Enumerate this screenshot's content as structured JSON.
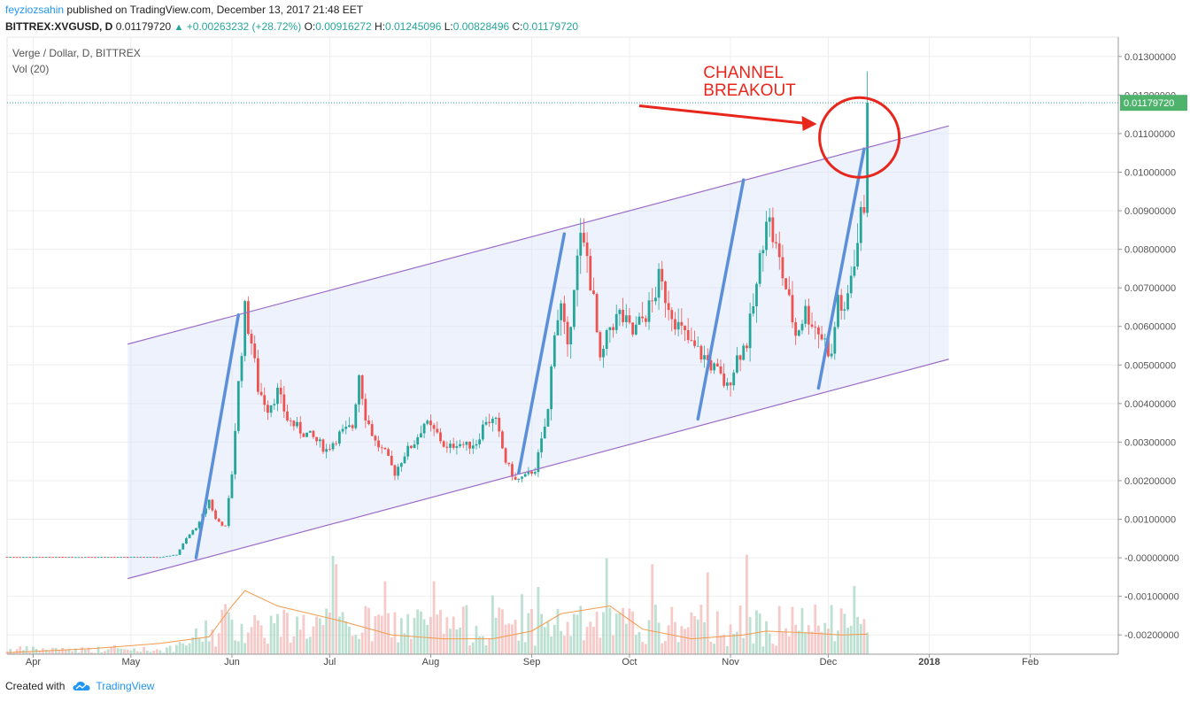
{
  "header": {
    "user": "feyziozsahin",
    "published_text": "published on TradingView.com, December 13, 2017 21:48 EET",
    "symbol_line": "BITTREX:XVGUSD, D",
    "last": "0.01179720",
    "change": "+0.00263232 (+28.72%)",
    "o_label": "O:",
    "o": "0.00916272",
    "h_label": "H:",
    "h": "0.01245096",
    "l_label": "L:",
    "l": "0.00828496",
    "c_label": "C:",
    "c": "0.01179720"
  },
  "legend": {
    "title": "Verge / Dollar, D, BITTREX",
    "vol": "Vol (20)"
  },
  "footer": {
    "created_with": "Created with",
    "brand": "TradingView"
  },
  "colors": {
    "up": "#26a69a",
    "down": "#ef5350",
    "channel": "#9c6cc9",
    "trend": "#5b8fd9",
    "annotation": "#e8261c",
    "volume_ma": "#f39a4b",
    "price_badge": "#4fb36d"
  },
  "chart_data": {
    "type": "candlestick",
    "title": "Verge / Dollar, D, BITTREX",
    "annotation": "CHANNEL\nBREAKOUT",
    "y_axis": {
      "range": [
        -0.0025,
        0.0135
      ],
      "ticks": [
        "0.01300000",
        "0.01200000",
        "0.01100000",
        "0.01000000",
        "0.00900000",
        "0.00800000",
        "0.00700000",
        "0.00600000",
        "0.00500000",
        "0.00400000",
        "0.00300000",
        "0.00200000",
        "0.00100000",
        "-0.00000000",
        "-0.00100000",
        "-0.00200000"
      ],
      "tick_values": [
        0.013,
        0.012,
        0.011,
        0.01,
        0.009,
        0.008,
        0.007,
        0.006,
        0.005,
        0.004,
        0.003,
        0.002,
        0.001,
        0.0,
        -0.001,
        -0.002
      ]
    },
    "x_axis": {
      "range": [
        "2017-03-24",
        "2018-02-28"
      ],
      "labels": [
        "Apr",
        "May",
        "Jun",
        "Jul",
        "Aug",
        "Sep",
        "Oct",
        "Nov",
        "Dec",
        "2018",
        "Feb"
      ],
      "label_dates": [
        "2017-04-01",
        "2017-05-01",
        "2017-06-01",
        "2017-07-01",
        "2017-08-01",
        "2017-09-01",
        "2017-10-01",
        "2017-11-01",
        "2017-12-01",
        "2018-01-01",
        "2018-02-01"
      ]
    },
    "last_price_label": "0.01179720",
    "last_price": 0.0117972,
    "price_path": [
      [
        "2017-03-24",
        2e-05
      ],
      [
        "2017-05-10",
        2e-05
      ],
      [
        "2017-05-15",
        8e-05
      ],
      [
        "2017-05-18",
        0.0005
      ],
      [
        "2017-05-22",
        0.0009
      ],
      [
        "2017-05-25",
        0.0015
      ],
      [
        "2017-05-27",
        0.001
      ],
      [
        "2017-05-30",
        0.0008
      ],
      [
        "2017-06-01",
        0.0022
      ],
      [
        "2017-06-03",
        0.0045
      ],
      [
        "2017-06-05",
        0.0064
      ],
      [
        "2017-06-07",
        0.0056
      ],
      [
        "2017-06-09",
        0.0044
      ],
      [
        "2017-06-12",
        0.0039
      ],
      [
        "2017-06-15",
        0.0043
      ],
      [
        "2017-06-18",
        0.0036
      ],
      [
        "2017-06-22",
        0.0033
      ],
      [
        "2017-06-26",
        0.0031
      ],
      [
        "2017-06-30",
        0.0028
      ],
      [
        "2017-07-04",
        0.0032
      ],
      [
        "2017-07-08",
        0.0034
      ],
      [
        "2017-07-10",
        0.0048
      ],
      [
        "2017-07-12",
        0.0037
      ],
      [
        "2017-07-15",
        0.003
      ],
      [
        "2017-07-18",
        0.0027
      ],
      [
        "2017-07-21",
        0.0022
      ],
      [
        "2017-07-24",
        0.0027
      ],
      [
        "2017-07-27",
        0.003
      ],
      [
        "2017-07-30",
        0.0035
      ],
      [
        "2017-08-03",
        0.0032
      ],
      [
        "2017-08-06",
        0.0028
      ],
      [
        "2017-08-09",
        0.003
      ],
      [
        "2017-08-12",
        0.0029
      ],
      [
        "2017-08-15",
        0.003
      ],
      [
        "2017-08-18",
        0.0036
      ],
      [
        "2017-08-21",
        0.0035
      ],
      [
        "2017-08-24",
        0.0025
      ],
      [
        "2017-08-27",
        0.002
      ],
      [
        "2017-08-30",
        0.0021
      ],
      [
        "2017-09-02",
        0.0023
      ],
      [
        "2017-09-04",
        0.003
      ],
      [
        "2017-09-06",
        0.0038
      ],
      [
        "2017-09-08",
        0.006
      ],
      [
        "2017-09-10",
        0.0065
      ],
      [
        "2017-09-12",
        0.0053
      ],
      [
        "2017-09-14",
        0.0072
      ],
      [
        "2017-09-16",
        0.0082
      ],
      [
        "2017-09-18",
        0.0078
      ],
      [
        "2017-09-20",
        0.0066
      ],
      [
        "2017-09-22",
        0.005
      ],
      [
        "2017-09-25",
        0.006
      ],
      [
        "2017-09-28",
        0.0063
      ],
      [
        "2017-10-02",
        0.0058
      ],
      [
        "2017-10-05",
        0.0062
      ],
      [
        "2017-10-08",
        0.0066
      ],
      [
        "2017-10-10",
        0.0072
      ],
      [
        "2017-10-13",
        0.0066
      ],
      [
        "2017-10-16",
        0.006
      ],
      [
        "2017-10-20",
        0.0055
      ],
      [
        "2017-10-24",
        0.0052
      ],
      [
        "2017-10-28",
        0.0048
      ],
      [
        "2017-10-31",
        0.0044
      ],
      [
        "2017-11-03",
        0.0052
      ],
      [
        "2017-11-06",
        0.0056
      ],
      [
        "2017-11-09",
        0.007
      ],
      [
        "2017-11-12",
        0.009
      ],
      [
        "2017-11-15",
        0.008
      ],
      [
        "2017-11-18",
        0.007
      ],
      [
        "2017-11-21",
        0.0058
      ],
      [
        "2017-11-24",
        0.0064
      ],
      [
        "2017-11-27",
        0.006
      ],
      [
        "2017-11-30",
        0.0056
      ],
      [
        "2017-12-02",
        0.0052
      ],
      [
        "2017-12-04",
        0.0068
      ],
      [
        "2017-12-06",
        0.0062
      ],
      [
        "2017-12-08",
        0.0074
      ],
      [
        "2017-12-10",
        0.0082
      ],
      [
        "2017-12-11",
        0.0088
      ],
      [
        "2017-12-12",
        0.0092
      ],
      [
        "2017-12-13",
        0.0118
      ]
    ],
    "channel": {
      "upper": [
        [
          "2017-04-30",
          0.00554
        ],
        [
          "2018-01-07",
          0.0112
        ]
      ],
      "lower": [
        [
          "2017-04-30",
          -0.00054
        ],
        [
          "2018-01-07",
          0.00515
        ]
      ]
    },
    "trend_lines": [
      [
        [
          "2017-05-21",
          0.0
        ],
        [
          "2017-06-03",
          0.0063
        ]
      ],
      [
        [
          "2017-08-28",
          0.0022
        ],
        [
          "2017-09-11",
          0.0084
        ]
      ],
      [
        [
          "2017-10-22",
          0.0036
        ],
        [
          "2017-11-05",
          0.0098
        ]
      ],
      [
        [
          "2017-11-28",
          0.0044
        ],
        [
          "2017-12-12",
          0.0106
        ]
      ]
    ],
    "volume_ma": [
      [
        "2017-03-24",
        -0.00246
      ],
      [
        "2017-04-20",
        -0.00235
      ],
      [
        "2017-05-10",
        -0.00222
      ],
      [
        "2017-05-25",
        -0.00205
      ],
      [
        "2017-06-01",
        -0.00125
      ],
      [
        "2017-06-05",
        -0.00085
      ],
      [
        "2017-06-15",
        -0.00125
      ],
      [
        "2017-07-05",
        -0.00165
      ],
      [
        "2017-07-20",
        -0.002
      ],
      [
        "2017-08-05",
        -0.0021
      ],
      [
        "2017-08-20",
        -0.0021
      ],
      [
        "2017-09-01",
        -0.0019
      ],
      [
        "2017-09-10",
        -0.00145
      ],
      [
        "2017-09-25",
        -0.00125
      ],
      [
        "2017-10-05",
        -0.00185
      ],
      [
        "2017-10-20",
        -0.0021
      ],
      [
        "2017-11-05",
        -0.002
      ],
      [
        "2017-11-12",
        -0.0019
      ],
      [
        "2017-11-25",
        -0.00195
      ],
      [
        "2017-12-05",
        -0.002
      ],
      [
        "2017-12-13",
        -0.00198
      ]
    ]
  }
}
